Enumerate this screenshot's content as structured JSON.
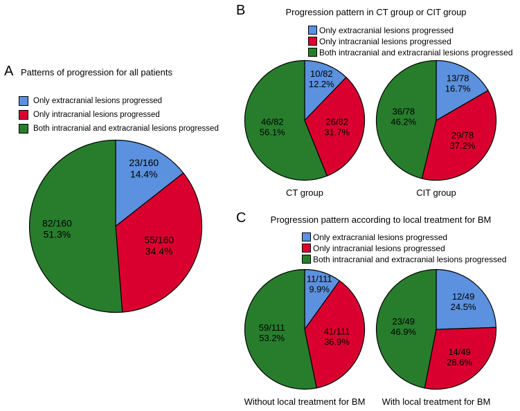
{
  "colors": {
    "blue": "#5B91DE",
    "red": "#D9002F",
    "green": "#287D2D",
    "outline": "#000000",
    "background": "#FFFFFF"
  },
  "legend": [
    {
      "key": "blue",
      "label": "Only extracranial lesions progressed"
    },
    {
      "key": "red",
      "label": "Only intracranial lesions progressed"
    },
    {
      "key": "green",
      "label": "Both intracranial and extracranial lesions progressed"
    }
  ],
  "panels": [
    {
      "label": "A",
      "title": "Patterns of progression for all patients"
    },
    {
      "label": "B",
      "title": "Progression pattern in CT group or CIT group"
    },
    {
      "label": "C",
      "title": "Progression pattern according to local treatment for BM"
    }
  ],
  "chart_data": [
    {
      "type": "pie",
      "panel": "A",
      "title": "Patterns of progression for all patients",
      "caption": "",
      "start_angle_deg": 0,
      "direction": "clockwise",
      "slices": [
        {
          "label": "Only extracranial lesions progressed",
          "count": 23,
          "total": 160,
          "fraction_text": "23/160",
          "pct_text": "14.4%",
          "value": 14.4,
          "color": "blue",
          "label_f": 0.75
        },
        {
          "label": "Only intracranial lesions progressed",
          "count": 55,
          "total": 160,
          "fraction_text": "55/160",
          "pct_text": "34.4%",
          "value": 34.4,
          "color": "red",
          "label_f": 0.55
        },
        {
          "label": "Both intracranial and extracranial lesions progressed",
          "count": 82,
          "total": 160,
          "fraction_text": "82/160",
          "pct_text": "51.3%",
          "value": 51.3,
          "color": "green",
          "label_f": 0.68
        }
      ]
    },
    {
      "type": "pie",
      "panel": "B",
      "title": "Progression pattern in CT group or CIT group",
      "caption": "CT group",
      "start_angle_deg": 0,
      "direction": "clockwise",
      "slices": [
        {
          "label": "Only extracranial lesions progressed",
          "count": 10,
          "total": 82,
          "fraction_text": "10/82",
          "pct_text": "12.2%",
          "value": 12.2,
          "color": "blue",
          "label_f": 0.75
        },
        {
          "label": "Only intracranial lesions progressed",
          "count": 26,
          "total": 82,
          "fraction_text": "26/82",
          "pct_text": "31.7%",
          "value": 31.7,
          "color": "red",
          "label_f": 0.55
        },
        {
          "label": "Both intracranial and extracranial lesions progressed",
          "count": 46,
          "total": 82,
          "fraction_text": "46/82",
          "pct_text": "56.1%",
          "value": 56.1,
          "color": "green",
          "label_f": 0.55
        }
      ]
    },
    {
      "type": "pie",
      "panel": "B",
      "title": "Progression pattern in CT group or CIT group",
      "caption": "CIT group",
      "start_angle_deg": 0,
      "direction": "clockwise",
      "slices": [
        {
          "label": "Only extracranial lesions progressed",
          "count": 13,
          "total": 78,
          "fraction_text": "13/78",
          "pct_text": "16.7%",
          "value": 16.7,
          "color": "blue",
          "label_f": 0.72
        },
        {
          "label": "Only intracranial lesions progressed",
          "count": 29,
          "total": 78,
          "fraction_text": "29/78",
          "pct_text": "37.2%",
          "value": 37.2,
          "color": "red",
          "label_f": 0.55
        },
        {
          "label": "Both intracranial and extracranial lesions progressed",
          "count": 36,
          "total": 78,
          "fraction_text": "36/78",
          "pct_text": "46.2%",
          "value": 46.2,
          "color": "green",
          "label_f": 0.55
        }
      ]
    },
    {
      "type": "pie",
      "panel": "C",
      "title": "Progression pattern according to local treatment for BM",
      "caption": "Without local treatment for BM",
      "start_angle_deg": 0,
      "direction": "clockwise",
      "slices": [
        {
          "label": "Only extracranial lesions progressed",
          "count": 11,
          "total": 111,
          "fraction_text": "11/111",
          "pct_text": "9.9%",
          "value": 9.9,
          "color": "blue",
          "label_f": 0.8
        },
        {
          "label": "Only intracranial lesions progressed",
          "count": 41,
          "total": 111,
          "fraction_text": "41/111",
          "pct_text": "36.9%",
          "value": 36.9,
          "color": "red",
          "label_f": 0.55
        },
        {
          "label": "Both intracranial and extracranial lesions progressed",
          "count": 59,
          "total": 111,
          "fraction_text": "59/111",
          "pct_text": "53.2%",
          "value": 53.2,
          "color": "green",
          "label_f": 0.55
        }
      ]
    },
    {
      "type": "pie",
      "panel": "C",
      "title": "Progression pattern according to local treatment for BM",
      "caption": "With local treatment for BM",
      "start_angle_deg": 0,
      "direction": "clockwise",
      "slices": [
        {
          "label": "Only extracranial lesions progressed",
          "count": 12,
          "total": 49,
          "fraction_text": "12/49",
          "pct_text": "24.5%",
          "value": 24.5,
          "color": "blue",
          "label_f": 0.65
        },
        {
          "label": "Only intracranial lesions progressed",
          "count": 14,
          "total": 49,
          "fraction_text": "14/49",
          "pct_text": "28.6%",
          "value": 28.6,
          "color": "red",
          "label_f": 0.6
        },
        {
          "label": "Both intracranial and extracranial lesions progressed",
          "count": 23,
          "total": 49,
          "fraction_text": "23/49",
          "pct_text": "46.9%",
          "value": 46.9,
          "color": "green",
          "label_f": 0.55
        }
      ]
    }
  ]
}
